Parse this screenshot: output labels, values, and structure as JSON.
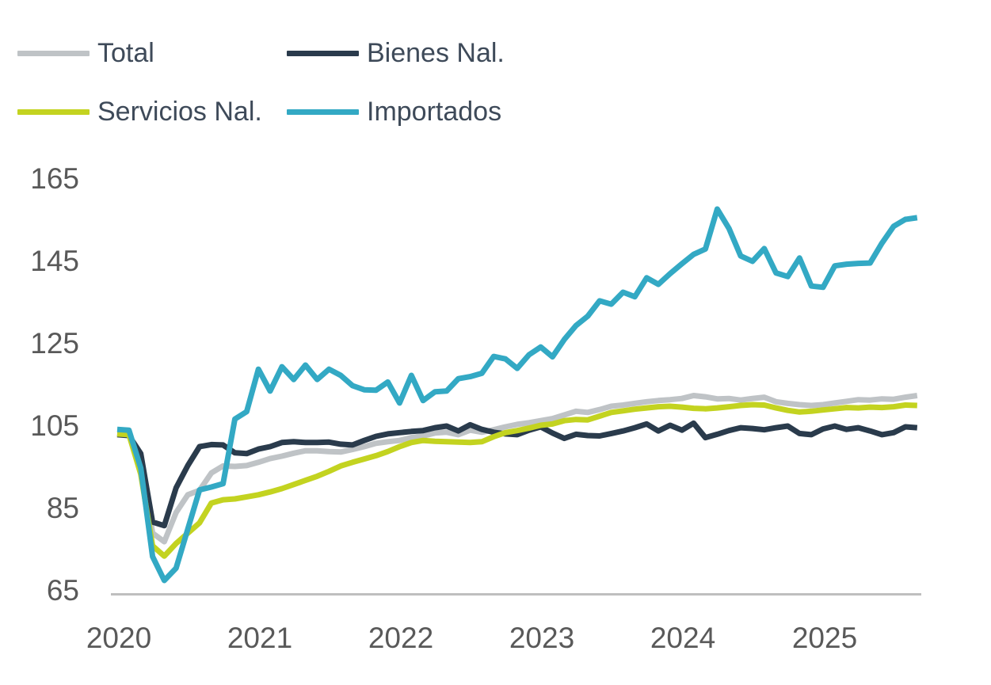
{
  "legend": {
    "position": "top-left",
    "rows": 2,
    "cols": 2
  },
  "y_axis": {
    "ticks": [
      "165",
      "145",
      "125",
      "105",
      "85",
      "65"
    ]
  },
  "x_axis": {
    "ticks": [
      "2020",
      "2021",
      "2022",
      "2023",
      "2024",
      "2025"
    ]
  },
  "colors": {
    "axis_line": "#BFBFBF",
    "axis_text": "#595959",
    "legend_text": "#3E4A59"
  },
  "chart_data": {
    "type": "line",
    "title": "",
    "xlabel": "",
    "ylabel": "",
    "frequency": "monthly",
    "x_start": "2020-01",
    "x_end": "2025-09",
    "x_tick_labels": [
      "2020",
      "2021",
      "2022",
      "2023",
      "2024",
      "2025"
    ],
    "y_ticks": [
      165,
      145,
      125,
      105,
      85,
      65
    ],
    "ylim": [
      65,
      165
    ],
    "grid": false,
    "legend_position": "top-left",
    "series": [
      {
        "name": "Total",
        "color": "#BFC3C6",
        "values": [
          103.3,
          103.1,
          96.7,
          79.0,
          76.9,
          84.0,
          88.3,
          89.4,
          93.6,
          95.3,
          95.2,
          95.4,
          96.2,
          97.1,
          97.7,
          98.4,
          99.0,
          99.0,
          98.8,
          98.7,
          99.3,
          100.0,
          100.8,
          101.2,
          101.5,
          102.2,
          102.6,
          103.3,
          103.5,
          102.9,
          104.0,
          103.5,
          104.1,
          104.8,
          105.4,
          105.8,
          106.3,
          106.8,
          107.7,
          108.6,
          108.3,
          109.0,
          109.8,
          110.1,
          110.5,
          110.9,
          111.2,
          111.4,
          111.7,
          112.4,
          112.1,
          111.6,
          111.7,
          111.3,
          111.7,
          112.0,
          110.9,
          110.5,
          110.2,
          110.0,
          110.2,
          110.6,
          111.0,
          111.4,
          111.3,
          111.6,
          111.5,
          112.0,
          112.4
        ]
      },
      {
        "name": "Bienes Nal.",
        "color": "#2A3B4C",
        "values": [
          102.9,
          102.7,
          98.3,
          81.7,
          80.8,
          90.0,
          95.4,
          100.0,
          100.5,
          100.4,
          98.5,
          98.3,
          99.4,
          100.0,
          101.0,
          101.2,
          101.0,
          101.0,
          101.1,
          100.6,
          100.4,
          101.5,
          102.5,
          103.1,
          103.4,
          103.7,
          103.9,
          104.6,
          105.0,
          103.8,
          105.3,
          104.2,
          103.5,
          103.1,
          102.9,
          104.0,
          104.8,
          103.3,
          102.0,
          103.0,
          102.7,
          102.6,
          103.2,
          103.8,
          104.6,
          105.5,
          103.8,
          105.2,
          104.0,
          105.7,
          102.2,
          103.0,
          103.9,
          104.6,
          104.4,
          104.1,
          104.6,
          105.0,
          103.2,
          102.9,
          104.3,
          105.0,
          104.2,
          104.6,
          103.8,
          102.9,
          103.4,
          104.8,
          104.6
        ]
      },
      {
        "name": "Servicios Nal.",
        "color": "#C3D320",
        "values": [
          103.1,
          102.9,
          93.3,
          75.9,
          73.4,
          76.5,
          79.0,
          81.5,
          86.3,
          87.1,
          87.3,
          87.8,
          88.3,
          89.0,
          89.8,
          90.8,
          91.8,
          92.8,
          94.0,
          95.3,
          96.2,
          97.0,
          97.8,
          98.8,
          100.0,
          101.0,
          101.5,
          101.3,
          101.2,
          101.1,
          101.0,
          101.2,
          102.4,
          103.4,
          103.9,
          104.5,
          105.2,
          105.5,
          106.3,
          106.6,
          106.5,
          107.4,
          108.3,
          108.7,
          109.1,
          109.4,
          109.7,
          109.8,
          109.6,
          109.3,
          109.2,
          109.4,
          109.7,
          110.0,
          110.2,
          110.1,
          109.4,
          108.8,
          108.4,
          108.6,
          108.9,
          109.2,
          109.5,
          109.4,
          109.6,
          109.5,
          109.7,
          110.1,
          110.0
        ]
      },
      {
        "name": "Importados",
        "color": "#33A9C4",
        "values": [
          104.2,
          104.0,
          94.8,
          73.3,
          67.5,
          70.5,
          80.0,
          89.5,
          90.2,
          91.0,
          106.7,
          108.5,
          118.8,
          113.5,
          119.4,
          116.3,
          119.8,
          116.3,
          118.8,
          117.3,
          114.8,
          113.8,
          113.7,
          115.7,
          110.6,
          117.3,
          111.2,
          113.3,
          113.5,
          116.5,
          117.0,
          117.8,
          121.9,
          121.3,
          119.0,
          122.3,
          124.2,
          121.8,
          126.0,
          129.4,
          131.7,
          135.4,
          134.6,
          137.5,
          136.4,
          141.0,
          139.4,
          142.0,
          144.4,
          146.7,
          148.0,
          157.7,
          153.0,
          146.3,
          145.0,
          148.1,
          142.2,
          141.3,
          145.8,
          139.0,
          138.7,
          143.9,
          144.3,
          144.5,
          144.6,
          149.4,
          153.5,
          155.2,
          155.6
        ]
      }
    ]
  }
}
